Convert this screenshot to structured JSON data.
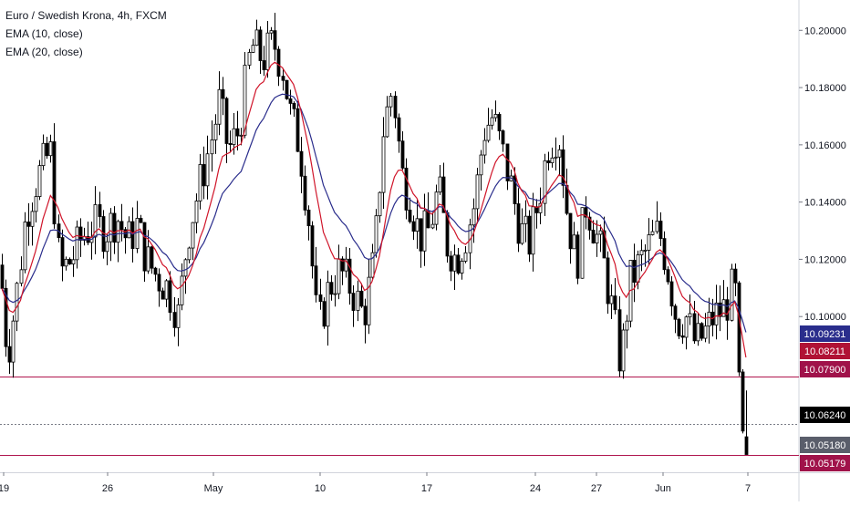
{
  "legend": {
    "title": "Euro / Swedish Krona, 4h, FXCM",
    "ema10": "EMA (10, close)",
    "ema20": "EMA (20, close)"
  },
  "colors": {
    "candle": "#000000",
    "ema10": "#d0152a",
    "ema20": "#2a2d8c",
    "hline": "#b0154e",
    "grid_border": "#d1d4dc"
  },
  "chart_data": {
    "type": "candlestick",
    "title": "Euro / Swedish Krona, 4h, FXCM",
    "ylim": [
      10.0456,
      10.2106
    ],
    "y_ticks": [
      "10.20000",
      "10.18000",
      "10.16000",
      "10.14000",
      "10.12000",
      "10.10000"
    ],
    "x_ticks": [
      "19",
      "26",
      "May",
      "10",
      "17",
      "24",
      "27",
      "Jun",
      "7"
    ],
    "grid": false,
    "legend_position": "top-left",
    "horizontal_lines": [
      {
        "value": 10.079,
        "style": "solid",
        "color": "#b0154e"
      },
      {
        "value": 10.0518,
        "style": "solid",
        "color": "#b0154e"
      },
      {
        "value": 10.0624,
        "style": "dotted",
        "color": "#787b86"
      }
    ],
    "price_badges": [
      {
        "label": "10.09231",
        "value": 10.09231,
        "color": "#2a2d8c"
      },
      {
        "label": "10.08211",
        "value": 10.08211,
        "color": "#b01235"
      },
      {
        "label": "10.07900",
        "value": 10.079,
        "color": "#a0124a"
      },
      {
        "label": "10.06240",
        "value": 10.0624,
        "color": "#000000"
      },
      {
        "label": "10.05180",
        "value": 10.0518,
        "color": "#5a5e6b"
      },
      {
        "label": "10.05179",
        "value": 10.05179,
        "color": "#a0124a"
      }
    ],
    "close_path": [
      [
        0,
        10.118
      ],
      [
        8,
        10.086
      ],
      [
        18,
        10.108
      ],
      [
        28,
        10.136
      ],
      [
        40,
        10.148
      ],
      [
        55,
        10.158
      ],
      [
        65,
        10.115
      ],
      [
        78,
        10.12
      ],
      [
        90,
        10.128
      ],
      [
        102,
        10.132
      ],
      [
        115,
        10.13
      ],
      [
        128,
        10.135
      ],
      [
        140,
        10.126
      ],
      [
        150,
        10.132
      ],
      [
        160,
        10.12
      ],
      [
        172,
        10.114
      ],
      [
        184,
        10.11
      ],
      [
        195,
        10.1
      ],
      [
        205,
        10.128
      ],
      [
        218,
        10.145
      ],
      [
        230,
        10.16
      ],
      [
        240,
        10.175
      ],
      [
        250,
        10.158
      ],
      [
        262,
        10.165
      ],
      [
        275,
        10.195
      ],
      [
        288,
        10.19
      ],
      [
        300,
        10.196
      ],
      [
        310,
        10.186
      ],
      [
        318,
        10.17
      ],
      [
        328,
        10.16
      ],
      [
        338,
        10.135
      ],
      [
        348,
        10.095
      ],
      [
        360,
        10.11
      ],
      [
        372,
        10.116
      ],
      [
        385,
        10.11
      ],
      [
        398,
        10.1
      ],
      [
        410,
        10.12
      ],
      [
        420,
        10.165
      ],
      [
        430,
        10.18
      ],
      [
        440,
        10.15
      ],
      [
        450,
        10.14
      ],
      [
        460,
        10.128
      ],
      [
        470,
        10.13
      ],
      [
        480,
        10.145
      ],
      [
        490,
        10.125
      ],
      [
        500,
        10.12
      ],
      [
        510,
        10.128
      ],
      [
        520,
        10.14
      ],
      [
        530,
        10.165
      ],
      [
        540,
        10.17
      ],
      [
        550,
        10.158
      ],
      [
        560,
        10.145
      ],
      [
        570,
        10.13
      ],
      [
        580,
        10.126
      ],
      [
        590,
        10.14
      ],
      [
        600,
        10.16
      ],
      [
        612,
        10.165
      ],
      [
        622,
        10.135
      ],
      [
        632,
        10.118
      ],
      [
        642,
        10.14
      ],
      [
        652,
        10.13
      ],
      [
        662,
        10.118
      ],
      [
        672,
        10.1
      ],
      [
        680,
        10.083
      ],
      [
        690,
        10.112
      ],
      [
        700,
        10.118
      ],
      [
        712,
        10.125
      ],
      [
        722,
        10.13
      ],
      [
        732,
        10.116
      ],
      [
        742,
        10.098
      ],
      [
        752,
        10.1
      ],
      [
        762,
        10.09
      ],
      [
        772,
        10.094
      ],
      [
        782,
        10.1
      ],
      [
        795,
        10.103
      ],
      [
        805,
        10.112
      ],
      [
        809,
        10.08
      ],
      [
        812,
        10.054
      ],
      [
        818,
        10.058
      ]
    ]
  }
}
